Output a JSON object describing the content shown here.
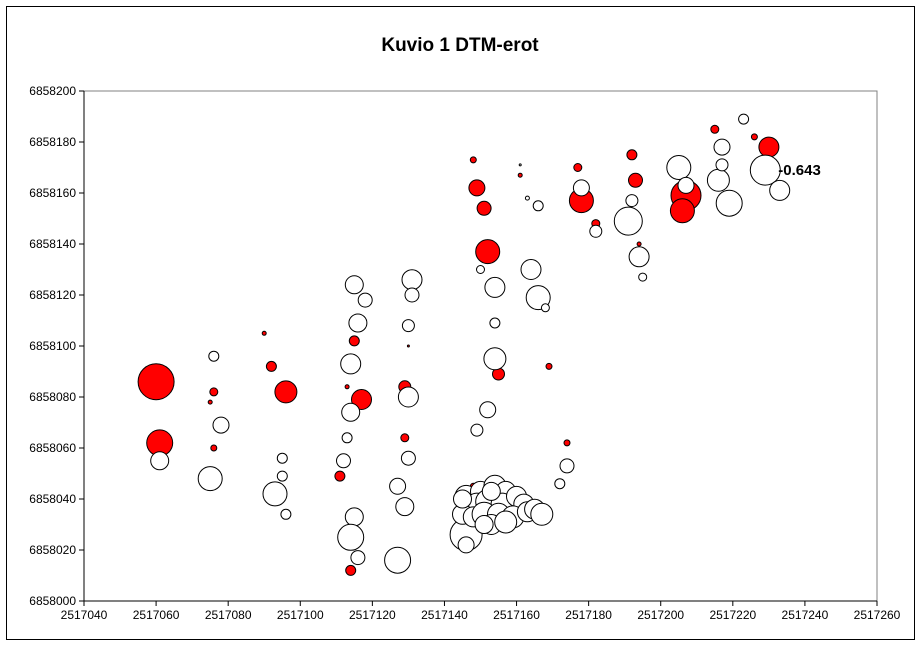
{
  "chart_data": {
    "type": "scatter",
    "title": "Kuvio 1 DTM-erot",
    "xlabel": "",
    "ylabel": "",
    "xlim": [
      2517040,
      2517260
    ],
    "ylim": [
      6858000,
      6858200
    ],
    "x_ticks": [
      "2517040",
      "2517060",
      "2517080",
      "2517100",
      "2517120",
      "2517140",
      "2517160",
      "2517180",
      "2517200",
      "2517220",
      "2517240",
      "2517260"
    ],
    "y_ticks": [
      "6858000",
      "6858020",
      "6858040",
      "6858060",
      "6858080",
      "6858100",
      "6858120",
      "6858140",
      "6858160",
      "6858180",
      "6858200"
    ],
    "grid": false,
    "legend": "none",
    "colors": {
      "red": "#ff0000",
      "white": "#ffffff",
      "outline": "#000000"
    },
    "annotations": [
      {
        "text": "-0.643",
        "x": 2517229,
        "y": 6858169
      }
    ],
    "series": [
      {
        "color": "red",
        "points": [
          [
            2517060,
            6858086,
            18
          ],
          [
            2517061,
            6858062,
            13
          ],
          [
            2517076,
            6858082,
            4
          ],
          [
            2517075,
            6858078,
            2
          ],
          [
            2517076,
            6858060,
            3
          ],
          [
            2517090,
            6858105,
            2
          ],
          [
            2517092,
            6858092,
            5
          ],
          [
            2517096,
            6858082,
            11
          ],
          [
            2517113,
            6858084,
            2
          ],
          [
            2517115,
            6858102,
            5
          ],
          [
            2517117,
            6858079,
            10
          ],
          [
            2517111,
            6858049,
            5
          ],
          [
            2517114,
            6858026,
            5
          ],
          [
            2517114,
            6858012,
            5
          ],
          [
            2517129,
            6858084,
            6
          ],
          [
            2517130,
            6858100,
            1
          ],
          [
            2517129,
            6858064,
            4
          ],
          [
            2517148,
            6858173,
            3
          ],
          [
            2517149,
            6858162,
            8
          ],
          [
            2517151,
            6858154,
            7
          ],
          [
            2517152,
            6858137,
            12
          ],
          [
            2517155,
            6858089,
            6
          ],
          [
            2517148,
            6858045,
            3
          ],
          [
            2517161,
            6858167,
            2
          ],
          [
            2517169,
            6858092,
            3
          ],
          [
            2517174,
            6858062,
            3
          ],
          [
            2517177,
            6858170,
            4
          ],
          [
            2517178,
            6858157,
            12
          ],
          [
            2517182,
            6858148,
            4
          ],
          [
            2517192,
            6858175,
            5
          ],
          [
            2517193,
            6858165,
            7
          ],
          [
            2517194,
            6858140,
            2
          ],
          [
            2517207,
            6858159,
            15
          ],
          [
            2517206,
            6858153,
            12
          ],
          [
            2517215,
            6858185,
            4
          ],
          [
            2517226,
            6858182,
            3
          ],
          [
            2517230,
            6858178,
            10
          ]
        ]
      },
      {
        "color": "white",
        "points": [
          [
            2517061,
            6858055,
            9
          ],
          [
            2517076,
            6858096,
            5
          ],
          [
            2517078,
            6858069,
            8
          ],
          [
            2517075,
            6858048,
            12
          ],
          [
            2517095,
            6858056,
            5
          ],
          [
            2517095,
            6858049,
            5
          ],
          [
            2517093,
            6858042,
            12
          ],
          [
            2517096,
            6858034,
            5
          ],
          [
            2517115,
            6858124,
            9
          ],
          [
            2517118,
            6858118,
            7
          ],
          [
            2517116,
            6858109,
            9
          ],
          [
            2517114,
            6858093,
            10
          ],
          [
            2517113,
            6858064,
            5
          ],
          [
            2517112,
            6858055,
            7
          ],
          [
            2517114,
            6858074,
            9
          ],
          [
            2517115,
            6858033,
            9
          ],
          [
            2517114,
            6858025,
            13
          ],
          [
            2517116,
            6858017,
            7
          ],
          [
            2517131,
            6858126,
            10
          ],
          [
            2517131,
            6858120,
            7
          ],
          [
            2517130,
            6858108,
            6
          ],
          [
            2517130,
            6858080,
            10
          ],
          [
            2517130,
            6858056,
            7
          ],
          [
            2517127,
            6858045,
            8
          ],
          [
            2517129,
            6858037,
            9
          ],
          [
            2517127,
            6858016,
            13
          ],
          [
            2517146,
            6858026,
            16
          ],
          [
            2517146,
            6858022,
            8
          ],
          [
            2517149,
            6858067,
            6
          ],
          [
            2517150,
            6858130,
            4
          ],
          [
            2517154,
            6858123,
            10
          ],
          [
            2517154,
            6858109,
            5
          ],
          [
            2517154,
            6858095,
            11
          ],
          [
            2517152,
            6858075,
            8
          ],
          [
            2517161,
            6858171,
            1
          ],
          [
            2517163,
            6858158,
            2
          ],
          [
            2517166,
            6858155,
            5
          ],
          [
            2517164,
            6858130,
            10
          ],
          [
            2517166,
            6858119,
            12
          ],
          [
            2517168,
            6858115,
            4
          ],
          [
            2517174,
            6858053,
            7
          ],
          [
            2517172,
            6858046,
            5
          ],
          [
            2517178,
            6858162,
            8
          ],
          [
            2517182,
            6858145,
            6
          ],
          [
            2517192,
            6858157,
            6
          ],
          [
            2517191,
            6858149,
            14
          ],
          [
            2517194,
            6858135,
            10
          ],
          [
            2517195,
            6858127,
            4
          ],
          [
            2517205,
            6858170,
            12
          ],
          [
            2517207,
            6858163,
            8
          ],
          [
            2517216,
            6858165,
            11
          ],
          [
            2517219,
            6858156,
            13
          ],
          [
            2517217,
            6858178,
            8
          ],
          [
            2517217,
            6858171,
            6
          ],
          [
            2517223,
            6858189,
            5
          ],
          [
            2517229,
            6858169,
            15
          ],
          [
            2517233,
            6858161,
            10
          ],
          [
            2517146,
            6858041,
            11
          ],
          [
            2517150,
            6858043,
            10
          ],
          [
            2517154,
            6858045,
            11
          ],
          [
            2517157,
            6858043,
            10
          ],
          [
            2517149,
            6858038,
            11
          ],
          [
            2517152,
            6858039,
            12
          ],
          [
            2517156,
            6858038,
            11
          ],
          [
            2517160,
            6858041,
            10
          ],
          [
            2517162,
            6858038,
            10
          ],
          [
            2517145,
            6858034,
            10
          ],
          [
            2517148,
            6858033,
            10
          ],
          [
            2517151,
            6858034,
            12
          ],
          [
            2517155,
            6858034,
            11
          ],
          [
            2517159,
            6858033,
            11
          ],
          [
            2517163,
            6858035,
            10
          ],
          [
            2517165,
            6858036,
            10
          ],
          [
            2517167,
            6858034,
            11
          ],
          [
            2517153,
            6858030,
            10
          ],
          [
            2517157,
            6858031,
            11
          ],
          [
            2517151,
            6858030,
            9
          ],
          [
            2517145,
            6858040,
            9
          ],
          [
            2517153,
            6858043,
            9
          ]
        ]
      }
    ]
  }
}
